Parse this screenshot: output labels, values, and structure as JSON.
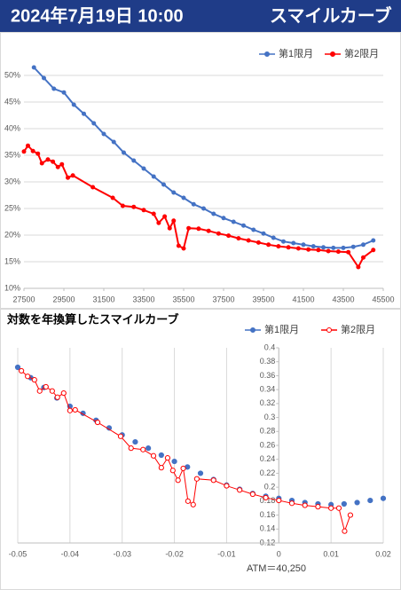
{
  "header": {
    "date": "2024年7月19日 10:00",
    "title": "スマイルカーブ"
  },
  "chart_data": [
    {
      "type": "line",
      "xlim": [
        27500,
        45500
      ],
      "xticks": [
        27500,
        29500,
        31500,
        33500,
        35500,
        37500,
        39500,
        41500,
        43500,
        45500
      ],
      "ylim": [
        10,
        52
      ],
      "yticks": [
        {
          "value": 10,
          "label": "10%"
        },
        {
          "value": 15,
          "label": "15%"
        },
        {
          "value": 20,
          "label": "20%"
        },
        {
          "value": 25,
          "label": "25%"
        },
        {
          "value": 30,
          "label": "30%"
        },
        {
          "value": 35,
          "label": "35%"
        },
        {
          "value": 40,
          "label": "40%"
        },
        {
          "value": 45,
          "label": "45%"
        },
        {
          "value": 50,
          "label": "50%"
        }
      ],
      "ygrid": true,
      "xgrid": false,
      "legend": "top-right",
      "series": [
        {
          "name": "第1限月",
          "color": "#4472c4",
          "line": true,
          "marker_fill": "#4472c4",
          "x": [
            28000,
            28500,
            29000,
            29500,
            30000,
            30500,
            31000,
            31500,
            32000,
            32500,
            33000,
            33500,
            34000,
            34500,
            35000,
            35500,
            36000,
            36500,
            37000,
            37500,
            38000,
            38500,
            39000,
            39500,
            40000,
            40500,
            41000,
            41500,
            42000,
            42500,
            43000,
            43500,
            44000,
            44500,
            45000
          ],
          "values": [
            51.5,
            49.5,
            47.5,
            46.8,
            44.5,
            42.8,
            41.0,
            39.0,
            37.5,
            35.5,
            34.0,
            32.5,
            31.0,
            29.5,
            28.0,
            27.0,
            25.8,
            25.0,
            24.0,
            23.2,
            22.5,
            21.8,
            21.0,
            20.3,
            19.5,
            18.8,
            18.5,
            18.2,
            17.9,
            17.7,
            17.6,
            17.6,
            17.8,
            18.2,
            19.0
          ]
        },
        {
          "name": "第2限月",
          "color": "#ff0000",
          "line": true,
          "marker_fill": "#ff0000",
          "x": [
            27500,
            27700,
            27950,
            28200,
            28400,
            28700,
            28950,
            29200,
            29400,
            29700,
            29950,
            30950,
            31950,
            32450,
            33000,
            33500,
            34000,
            34250,
            34550,
            34800,
            35000,
            35250,
            35500,
            35750,
            36250,
            36750,
            37250,
            37750,
            38250,
            38750,
            39250,
            39750,
            40250,
            40750,
            41250,
            41750,
            42250,
            42750,
            43250,
            43750,
            44250,
            44500,
            45000
          ],
          "values": [
            35.7,
            36.8,
            35.8,
            35.3,
            33.5,
            34.2,
            33.8,
            32.8,
            33.3,
            30.8,
            31.2,
            29.0,
            27.0,
            25.5,
            25.3,
            24.7,
            24.0,
            22.3,
            23.5,
            21.3,
            22.7,
            18.0,
            17.5,
            21.3,
            21.2,
            20.8,
            20.3,
            19.9,
            19.4,
            19.0,
            18.6,
            18.2,
            17.9,
            17.7,
            17.5,
            17.3,
            17.2,
            17.0,
            16.9,
            16.8,
            14.0,
            15.8,
            17.2
          ]
        }
      ]
    },
    {
      "type": "line",
      "title": "対数を年換算したスマイルカーブ",
      "annotation": "ATM＝40,250",
      "xlim": [
        -0.05,
        0.02
      ],
      "xticks": [
        -0.05,
        -0.04,
        -0.03,
        -0.02,
        -0.01,
        0,
        0.01,
        0.02
      ],
      "ylim": [
        0.12,
        0.4
      ],
      "yticks": [
        0.12,
        0.14,
        0.16,
        0.18,
        0.2,
        0.22,
        0.24,
        0.26,
        0.28,
        0.3,
        0.32,
        0.34,
        0.36,
        0.38,
        0.4
      ],
      "ygrid": false,
      "xgrid": true,
      "legend": "top-right",
      "series": [
        {
          "name": "第1限月",
          "color": "#4472c4",
          "line": false,
          "marker_fill": "#4472c4",
          "x": [
            -0.05,
            -0.0475,
            -0.045,
            -0.0425,
            -0.04,
            -0.0375,
            -0.035,
            -0.0325,
            -0.03,
            -0.0275,
            -0.025,
            -0.0225,
            -0.02,
            -0.0175,
            -0.015,
            -0.0125,
            -0.01,
            -0.0075,
            -0.005,
            -0.0025,
            0,
            0.0025,
            0.005,
            0.0075,
            0.01,
            0.0125,
            0.015,
            0.0175,
            0.02
          ],
          "values": [
            0.372,
            0.357,
            0.343,
            0.328,
            0.316,
            0.306,
            0.296,
            0.285,
            0.275,
            0.265,
            0.256,
            0.246,
            0.237,
            0.229,
            0.22,
            0.211,
            0.203,
            0.197,
            0.191,
            0.187,
            0.184,
            0.181,
            0.178,
            0.176,
            0.175,
            0.176,
            0.178,
            0.181,
            0.184
          ]
        },
        {
          "name": "第2限月",
          "color": "#ff0000",
          "line": true,
          "marker_fill": "#ffffff",
          "x": [
            -0.0493,
            -0.0481,
            -0.0468,
            -0.0458,
            -0.0446,
            -0.0434,
            -0.0424,
            -0.0412,
            -0.04,
            -0.039,
            -0.0347,
            -0.0303,
            -0.0283,
            -0.026,
            -0.024,
            -0.0225,
            -0.0213,
            -0.0203,
            -0.0193,
            -0.0183,
            -0.0174,
            -0.0164,
            -0.0157,
            -0.0125,
            -0.01,
            -0.0075,
            -0.005,
            -0.0025,
            0,
            0.0025,
            0.005,
            0.0075,
            0.01,
            0.0115,
            0.0126,
            0.0137
          ],
          "values": [
            0.367,
            0.359,
            0.354,
            0.338,
            0.344,
            0.338,
            0.329,
            0.335,
            0.31,
            0.311,
            0.293,
            0.273,
            0.256,
            0.254,
            0.245,
            0.228,
            0.242,
            0.224,
            0.21,
            0.227,
            0.18,
            0.175,
            0.212,
            0.21,
            0.202,
            0.196,
            0.19,
            0.185,
            0.181,
            0.177,
            0.174,
            0.172,
            0.17,
            0.17,
            0.137,
            0.16
          ]
        }
      ]
    }
  ]
}
